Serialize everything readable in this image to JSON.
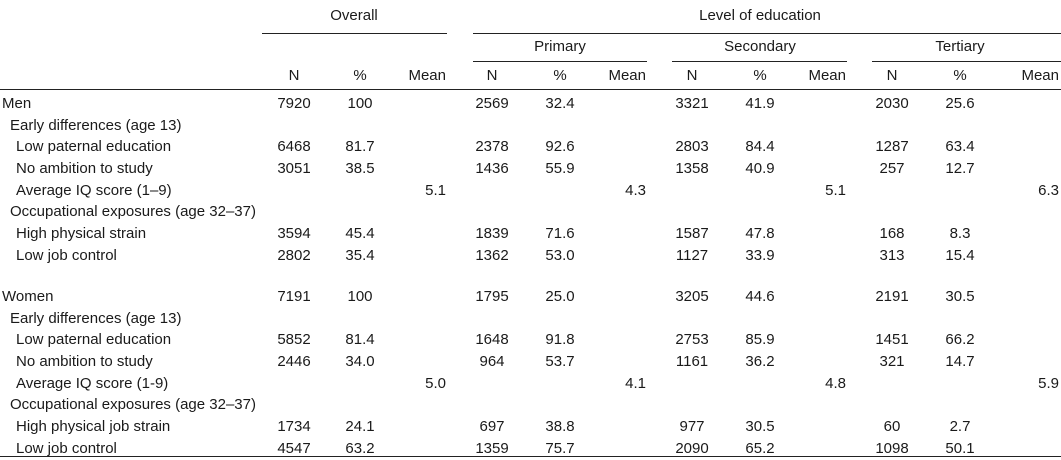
{
  "header": {
    "overall": "Overall",
    "level_of_education": "Level of education",
    "primary": "Primary",
    "secondary": "Secondary",
    "tertiary": "Tertiary",
    "col_n": "N",
    "col_pct": "%",
    "col_mean": "Mean"
  },
  "rows": [
    {
      "label": "Men",
      "indent": 0,
      "values": [
        "7920",
        "100",
        "",
        "2569",
        "32.4",
        "",
        "3321",
        "41.9",
        "",
        "2030",
        "25.6",
        ""
      ]
    },
    {
      "label": "Early differences (age 13)",
      "indent": 1,
      "values": [
        "",
        "",
        "",
        "",
        "",
        "",
        "",
        "",
        "",
        "",
        "",
        ""
      ]
    },
    {
      "label": "Low paternal education",
      "indent": 2,
      "values": [
        "6468",
        "81.7",
        "",
        "2378",
        "92.6",
        "",
        "2803",
        "84.4",
        "",
        "1287",
        "63.4",
        ""
      ]
    },
    {
      "label": "No ambition to study",
      "indent": 2,
      "values": [
        "3051",
        "38.5",
        "",
        "1436",
        "55.9",
        "",
        "1358",
        "40.9",
        "",
        "257",
        "12.7",
        ""
      ]
    },
    {
      "label": "Average IQ score (1–9)",
      "indent": 2,
      "values": [
        "",
        "",
        "5.1",
        "",
        "",
        "4.3",
        "",
        "",
        "5.1",
        "",
        "",
        "6.3"
      ]
    },
    {
      "label": "Occupational exposures (age 32–37)",
      "indent": 1,
      "values": [
        "",
        "",
        "",
        "",
        "",
        "",
        "",
        "",
        "",
        "",
        "",
        ""
      ]
    },
    {
      "label": "High physical strain",
      "indent": 2,
      "values": [
        "3594",
        "45.4",
        "",
        "1839",
        "71.6",
        "",
        "1587",
        "47.8",
        "",
        "168",
        "8.3",
        ""
      ]
    },
    {
      "label": "Low job control",
      "indent": 2,
      "values": [
        "2802",
        "35.4",
        "",
        "1362",
        "53.0",
        "",
        "1127",
        "33.9",
        "",
        "313",
        "15.4",
        ""
      ]
    },
    {
      "label": "Women",
      "indent": 0,
      "values": [
        "7191",
        "100",
        "",
        "1795",
        "25.0",
        "",
        "3205",
        "44.6",
        "",
        "2191",
        "30.5",
        ""
      ]
    },
    {
      "label": "Early differences (age 13)",
      "indent": 1,
      "values": [
        "",
        "",
        "",
        "",
        "",
        "",
        "",
        "",
        "",
        "",
        "",
        ""
      ]
    },
    {
      "label": "Low paternal education",
      "indent": 2,
      "values": [
        "5852",
        "81.4",
        "",
        "1648",
        "91.8",
        "",
        "2753",
        "85.9",
        "",
        "1451",
        "66.2",
        ""
      ]
    },
    {
      "label": "No ambition to study",
      "indent": 2,
      "values": [
        "2446",
        "34.0",
        "",
        "964",
        "53.7",
        "",
        "1161",
        "36.2",
        "",
        "321",
        "14.7",
        ""
      ]
    },
    {
      "label": "Average IQ score (1-9)",
      "indent": 2,
      "values": [
        "",
        "",
        "5.0",
        "",
        "",
        "4.1",
        "",
        "",
        "4.8",
        "",
        "",
        "5.9"
      ]
    },
    {
      "label": "Occupational exposures (age 32–37)",
      "indent": 1,
      "values": [
        "",
        "",
        "",
        "",
        "",
        "",
        "",
        "",
        "",
        "",
        "",
        ""
      ]
    },
    {
      "label": "High physical job strain",
      "indent": 2,
      "values": [
        "1734",
        "24.1",
        "",
        "697",
        "38.8",
        "",
        "977",
        "30.5",
        "",
        "60",
        "2.7",
        ""
      ]
    },
    {
      "label": "Low job control",
      "indent": 2,
      "values": [
        "4547",
        "63.2",
        "",
        "1359",
        "75.7",
        "",
        "2090",
        "65.2",
        "",
        "1098",
        "50.1",
        ""
      ]
    }
  ]
}
